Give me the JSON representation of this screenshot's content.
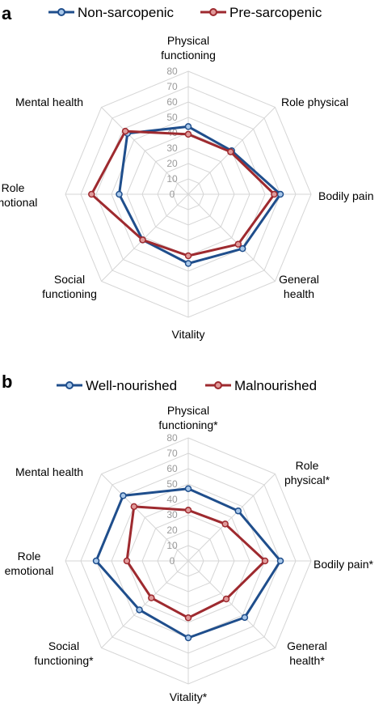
{
  "chart_data": [
    {
      "panel_label": "a",
      "type": "radar",
      "axes": [
        "Physical functioning",
        "Role physical",
        "Bodily pain",
        "General health",
        "Vitality",
        "Social functioning",
        "Role emotional",
        "Mental health"
      ],
      "axis_label_lines": [
        [
          "Physical",
          "functioning"
        ],
        [
          "Role physical"
        ],
        [
          "Bodily pain"
        ],
        [
          "General",
          "health"
        ],
        [
          "Vitality"
        ],
        [
          "Social",
          "functioning"
        ],
        [
          "Role",
          "emotional"
        ],
        [
          "Mental health"
        ]
      ],
      "ticks": [
        "0",
        "10",
        "20",
        "30",
        "40",
        "50",
        "60",
        "70",
        "80"
      ],
      "rlim": [
        0,
        80
      ],
      "grid": true,
      "legend_position": "top",
      "series": [
        {
          "name": "Non-sarcopenic",
          "color": "#1f4e8c",
          "values": [
            44,
            40,
            60,
            50,
            45,
            42,
            45,
            56
          ]
        },
        {
          "name": "Pre-sarcopenic",
          "color": "#9e2a2f",
          "values": [
            39,
            39,
            56,
            46,
            40,
            42,
            63,
            58
          ]
        }
      ]
    },
    {
      "panel_label": "b",
      "type": "radar",
      "axes": [
        "Physical functioning*",
        "Role physical*",
        "Bodily pain*",
        "General health*",
        "Vitality*",
        "Social functioning*",
        "Role emotional",
        "Mental health"
      ],
      "axis_label_lines": [
        [
          "Physical",
          "functioning*"
        ],
        [
          "Role",
          "physical*"
        ],
        [
          "Bodily pain*"
        ],
        [
          "General",
          "health*"
        ],
        [
          "Vitality*"
        ],
        [
          "Social",
          "functioning*"
        ],
        [
          "Role",
          "emotional"
        ],
        [
          "Mental health"
        ]
      ],
      "ticks": [
        "0",
        "10",
        "20",
        "30",
        "40",
        "50",
        "60",
        "70",
        "80"
      ],
      "rlim": [
        0,
        80
      ],
      "grid": true,
      "legend_position": "top",
      "series": [
        {
          "name": "Well-nourished",
          "color": "#1f4e8c",
          "values": [
            47,
            46,
            60,
            52,
            50,
            45,
            60,
            60
          ]
        },
        {
          "name": "Malnourished",
          "color": "#9e2a2f",
          "values": [
            33,
            34,
            50,
            35,
            37,
            34,
            40,
            50
          ]
        }
      ]
    }
  ]
}
